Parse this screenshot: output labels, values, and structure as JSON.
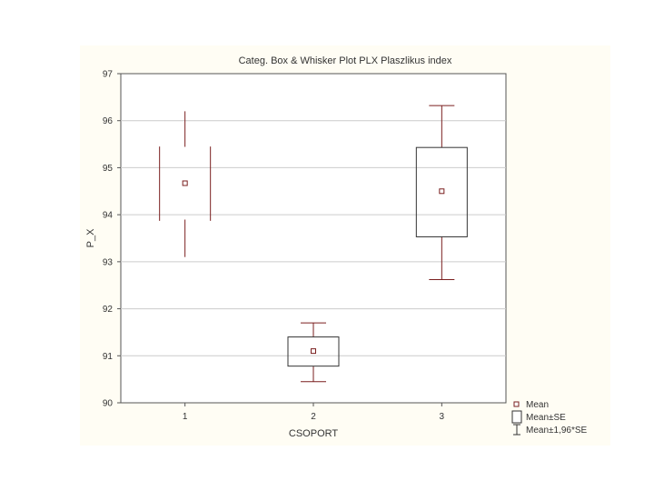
{
  "chart_data": {
    "type": "box",
    "title": "Categ. Box & Whisker Plot       PLX  Plaszlikus index",
    "xlabel": "CSOPORT",
    "ylabel": "P_X",
    "ylim": [
      90,
      97
    ],
    "yticks": [
      "90",
      "91",
      "92",
      "93",
      "94",
      "95",
      "96",
      "97"
    ],
    "categories": [
      "1",
      "2",
      "3"
    ],
    "grid": "horizontal",
    "legend_position": "bottom-right",
    "groups": [
      {
        "category": "1",
        "mean": 94.67,
        "se_low": 93.87,
        "se_high": 95.45,
        "ci_low": 93.1,
        "ci_high": 96.2,
        "style": "split"
      },
      {
        "category": "2",
        "mean": 91.1,
        "se_low": 90.78,
        "se_high": 91.4,
        "ci_low": 90.45,
        "ci_high": 91.7,
        "style": "box"
      },
      {
        "category": "3",
        "mean": 94.5,
        "se_low": 93.53,
        "se_high": 95.43,
        "ci_low": 92.62,
        "ci_high": 96.32,
        "style": "box"
      }
    ],
    "legend": [
      {
        "symbol": "mean",
        "label": "Mean"
      },
      {
        "symbol": "se",
        "label": "Mean±SE"
      },
      {
        "symbol": "ci",
        "label": "Mean±1,96*SE"
      }
    ],
    "colors": {
      "whisker": "#7a1f1f",
      "box": "#333333",
      "mean": "#7a1f1f",
      "grid": "#cccccc",
      "background": "#fffdf4"
    }
  }
}
